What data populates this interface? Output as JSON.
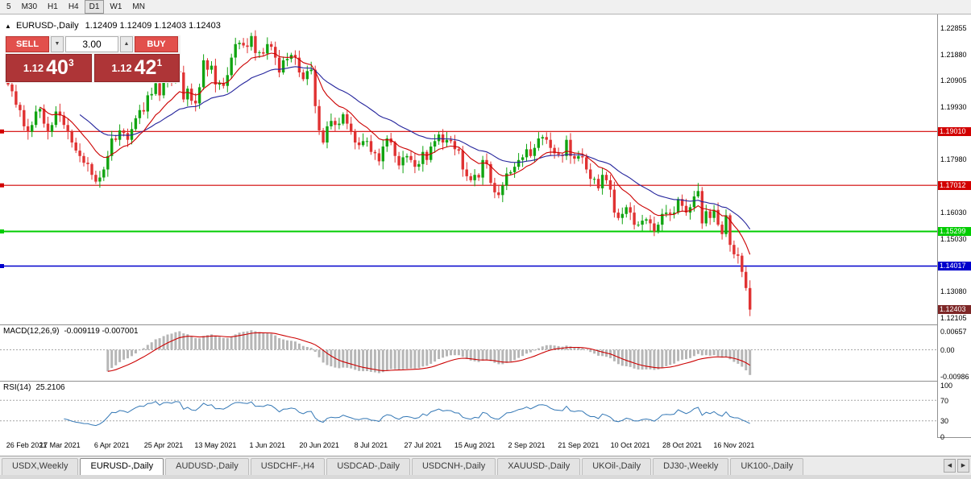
{
  "toolbar": {
    "timeframes": [
      "5",
      "M30",
      "H1",
      "H4",
      "D1",
      "W1",
      "MN"
    ],
    "active": "D1"
  },
  "chart_header": {
    "symbol": "EURUSD-,Daily",
    "ohlc": "1.12409 1.12409 1.12403 1.12403"
  },
  "icons": {
    "header_arrow": "▲",
    "spin_down": "▼",
    "spin_up": "▲",
    "tab_left": "◀",
    "tab_right": "▶"
  },
  "trade_panel": {
    "sell_label": "SELL",
    "buy_label": "BUY",
    "volume": "3.00",
    "sell_price": {
      "base": "1.12",
      "big": "40",
      "sup": "3"
    },
    "buy_price": {
      "base": "1.12",
      "big": "42",
      "sup": "1"
    }
  },
  "levels": [
    {
      "label": "1.19010",
      "value": 1.1901,
      "color": "#d20000",
      "width": 1.2
    },
    {
      "label": "1.17012",
      "value": 1.17012,
      "color": "#d20000",
      "width": 1.2
    },
    {
      "label": "1.15299",
      "value": 1.15299,
      "color": "#00cc00",
      "width": 2
    },
    {
      "label": "1.14017",
      "value": 1.14017,
      "color": "#0000cc",
      "width": 1.4
    }
  ],
  "current_price": {
    "label": "1.12403",
    "value": 1.12403,
    "bg": "#7d2626"
  },
  "macd_panel": {
    "name": "MACD(12,26,9)",
    "values": "-0.009119 -0.007001",
    "scale_top": "0.00657",
    "scale_zero": "0.00",
    "scale_bottom": "-0.00986"
  },
  "rsi_panel": {
    "name": "RSI(14)",
    "value": "25.2106",
    "scale": [
      "100",
      "70",
      "30",
      "0"
    ]
  },
  "tabs": {
    "items": [
      "USDX,Weekly",
      "EURUSD-,Daily",
      "AUDUSD-,Daily",
      "USDCHF-,H4",
      "USDCAD-,Daily",
      "USDCNH-,Daily",
      "XAUUSD-,Daily",
      "UKOil-,Daily",
      "DJ30-,Weekly",
      "UK100-,Daily"
    ],
    "active_index": 1
  },
  "colors": {
    "up": "#11a411",
    "down": "#e03232",
    "ma_fast": "#cc0000",
    "ma_slow": "#24249c",
    "macd_hist": "#b6b6b6",
    "macd_signal": "#cc0000",
    "rsi_line": "#3377b5",
    "dotted": "#a6a6a6"
  },
  "chart_data": {
    "type": "candlestick",
    "symbol": "EURUSD-",
    "timeframe": "Daily",
    "title": "EURUSD-,Daily",
    "y_axis": {
      "top": 1.2335,
      "bottom": 1.1185,
      "ticks": [
        {
          "v": 1.22855,
          "label": "1.22855"
        },
        {
          "v": 1.2188,
          "label": "1.21880"
        },
        {
          "v": 1.20905,
          "label": "1.20905"
        },
        {
          "v": 1.1993,
          "label": "1.19930"
        },
        {
          "v": 1.1798,
          "label": "1.17980"
        },
        {
          "v": 1.1603,
          "label": "1.16030"
        },
        {
          "v": 1.1503,
          "label": "1.15030"
        },
        {
          "v": 1.1308,
          "label": "1.13080"
        },
        {
          "v": 1.12105,
          "label": "1.12105"
        }
      ]
    },
    "x_labels": [
      {
        "i": 0,
        "text": "26 Feb 2021"
      },
      {
        "i": 13,
        "text": "17 Mar 2021"
      },
      {
        "i": 26,
        "text": "6 Apr 2021"
      },
      {
        "i": 39,
        "text": "25 Apr 2021"
      },
      {
        "i": 52,
        "text": "13 May 2021"
      },
      {
        "i": 65,
        "text": "1 Jun 2021"
      },
      {
        "i": 78,
        "text": "20 Jun 2021"
      },
      {
        "i": 91,
        "text": "8 Jul 2021"
      },
      {
        "i": 104,
        "text": "27 Jul 2021"
      },
      {
        "i": 117,
        "text": "15 Aug 2021"
      },
      {
        "i": 130,
        "text": "2 Sep 2021"
      },
      {
        "i": 143,
        "text": "21 Sep 2021"
      },
      {
        "i": 156,
        "text": "10 Oct 2021"
      },
      {
        "i": 169,
        "text": "28 Oct 2021"
      },
      {
        "i": 182,
        "text": "16 Nov 2021"
      }
    ],
    "indicators": {
      "ma_fast_period": 12,
      "ma_slow_period": 30,
      "macd": [
        12,
        26,
        9
      ],
      "rsi_period": 14
    },
    "first_open": 1.2095,
    "closes": [
      1.2075,
      1.205,
      1.2,
      1.198,
      1.192,
      1.19,
      1.1925,
      1.1975,
      1.1985,
      1.193,
      1.19,
      1.1925,
      1.1975,
      1.196,
      1.1925,
      1.19,
      1.186,
      1.183,
      1.181,
      1.1785,
      1.178,
      1.174,
      1.1715,
      1.173,
      1.176,
      1.181,
      1.1875,
      1.187,
      1.1905,
      1.1895,
      1.187,
      1.191,
      1.195,
      1.198,
      1.1975,
      1.2035,
      1.204,
      1.208,
      1.2035,
      1.209,
      1.2095,
      1.2085,
      1.2125,
      1.212,
      1.202,
      1.206,
      1.2015,
      1.2005,
      1.2065,
      1.2165,
      1.213,
      1.2145,
      1.2075,
      1.208,
      1.207,
      1.211,
      1.2175,
      1.2225,
      1.223,
      1.222,
      1.2215,
      1.2255,
      1.2192,
      1.2195,
      1.219,
      1.2225,
      1.2215,
      1.2175,
      1.212,
      1.2165,
      1.217,
      1.2185,
      1.2175,
      1.212,
      1.2095,
      1.2125,
      1.213,
      1.1995,
      1.1905,
      1.186,
      1.192,
      1.194,
      1.1925,
      1.193,
      1.1965,
      1.193,
      1.19,
      1.186,
      1.185,
      1.1865,
      1.1865,
      1.1825,
      1.182,
      1.179,
      1.1845,
      1.1875,
      1.186,
      1.181,
      1.1775,
      1.1805,
      1.181,
      1.1795,
      1.177,
      1.178,
      1.1825,
      1.1795,
      1.1845,
      1.1865,
      1.189,
      1.186,
      1.187,
      1.1865,
      1.1835,
      1.183,
      1.176,
      1.1735,
      1.172,
      1.174,
      1.173,
      1.1795,
      1.178,
      1.171,
      1.1675,
      1.1665,
      1.17,
      1.1745,
      1.175,
      1.177,
      1.1795,
      1.1805,
      1.1835,
      1.181,
      1.184,
      1.1875,
      1.188,
      1.187,
      1.184,
      1.182,
      1.1815,
      1.181,
      1.187,
      1.181,
      1.18,
      1.181,
      1.1805,
      1.176,
      1.1725,
      1.1725,
      1.169,
      1.174,
      1.172,
      1.1685,
      1.16,
      1.158,
      1.1595,
      1.162,
      1.16,
      1.1555,
      1.1555,
      1.157,
      1.1575,
      1.156,
      1.153,
      1.1555,
      1.1595,
      1.16,
      1.1595,
      1.16,
      1.165,
      1.1625,
      1.16,
      1.162,
      1.166,
      1.168,
      1.156,
      1.1605,
      1.158,
      1.161,
      1.1555,
      1.152,
      1.159,
      1.148,
      1.1445,
      1.144,
      1.138,
      1.132,
      1.124
    ]
  }
}
